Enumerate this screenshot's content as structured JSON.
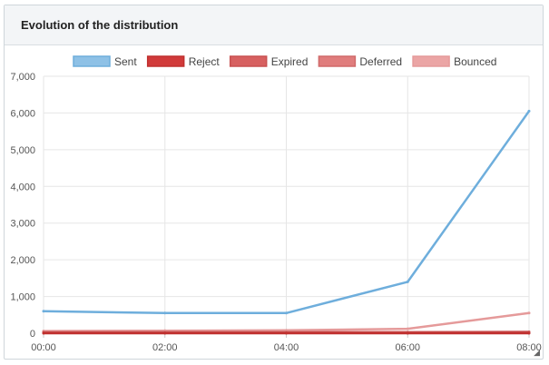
{
  "panel": {
    "title": "Evolution of the distribution",
    "resize_glyph": "◢"
  },
  "chart_data": {
    "type": "line",
    "title": "Evolution of the distribution",
    "xlabel": "",
    "ylabel": "",
    "categories": [
      "00:00",
      "02:00",
      "04:00",
      "06:00",
      "08:00"
    ],
    "ylim": [
      0,
      7000
    ],
    "yticks": [
      0,
      1000,
      2000,
      3000,
      4000,
      5000,
      6000,
      7000
    ],
    "ytick_labels": [
      "0",
      "1,000",
      "2,000",
      "3,000",
      "4,000",
      "5,000",
      "6,000",
      "7,000"
    ],
    "grid": true,
    "legend_position": "top",
    "series": [
      {
        "name": "Sent",
        "values": [
          600,
          550,
          550,
          1400,
          6050
        ],
        "color": "#8ec1e6",
        "stroke": "#6eaedc"
      },
      {
        "name": "Reject",
        "values": [
          0,
          0,
          0,
          0,
          0
        ],
        "color": "#d13a3a",
        "stroke": "#c0302f"
      },
      {
        "name": "Expired",
        "values": [
          15,
          15,
          15,
          15,
          20
        ],
        "color": "#d76060",
        "stroke": "#c85050"
      },
      {
        "name": "Deferred",
        "values": [
          30,
          30,
          30,
          30,
          40
        ],
        "color": "#e07d7d",
        "stroke": "#d06a6a"
      },
      {
        "name": "Bounced",
        "values": [
          60,
          70,
          80,
          120,
          550
        ],
        "color": "#eba5a5",
        "stroke": "#e59a9a"
      }
    ]
  }
}
